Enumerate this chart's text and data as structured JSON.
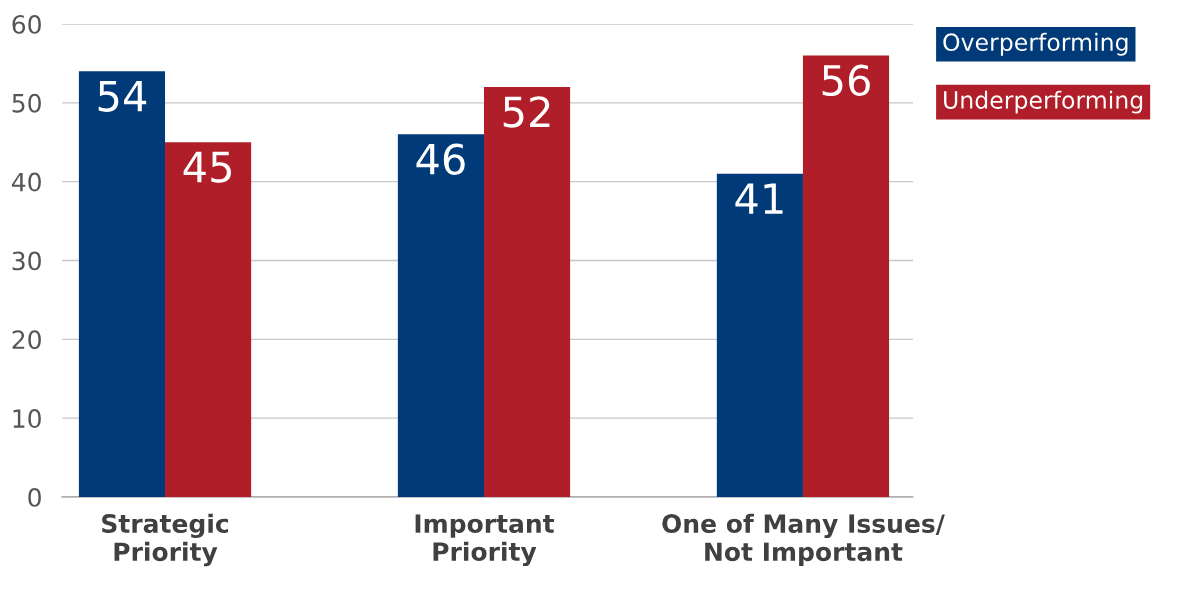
{
  "chart_data": {
    "type": "bar",
    "categories": [
      "Strategic\nPriority",
      "Important\nPriority",
      "One of Many Issues/\nNot Important"
    ],
    "series": [
      {
        "name": "Overperforming",
        "color": "#003a78",
        "values": [
          54,
          46,
          41
        ]
      },
      {
        "name": "Underperforming",
        "color": "#b01f29",
        "values": [
          45,
          52,
          56
        ]
      }
    ],
    "ylim": [
      0,
      60
    ],
    "yticks": [
      0,
      10,
      20,
      30,
      40,
      50,
      60
    ],
    "grid": "y",
    "legend": "top right",
    "data_labels": true
  }
}
